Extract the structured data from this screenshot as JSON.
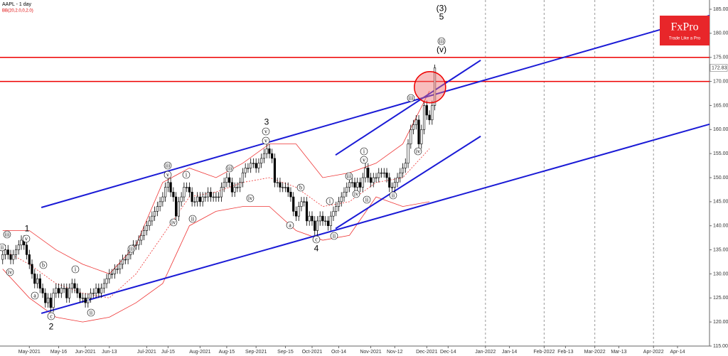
{
  "chart_data": {
    "type": "candlestick",
    "title": "AAPL - 1 day",
    "subtitle": "BB(20,2.0,0,2.0)",
    "open": [
      133,
      134,
      135,
      134,
      133,
      134,
      135,
      136,
      137,
      136,
      134,
      132,
      130,
      128,
      129,
      127,
      126,
      124,
      125,
      123,
      126,
      127,
      126,
      127,
      127,
      125,
      127,
      128,
      127,
      126,
      125,
      125,
      124,
      125,
      126,
      126,
      127,
      126,
      127,
      128,
      129,
      130,
      130,
      131,
      131,
      132,
      133,
      133,
      134,
      135,
      136,
      136,
      137,
      138,
      139,
      140,
      141,
      142,
      143,
      144,
      145,
      146,
      148,
      149,
      147,
      146,
      142,
      145,
      146,
      148,
      148,
      147,
      145,
      145,
      146,
      145,
      146,
      146,
      147,
      146,
      146,
      146,
      146,
      148,
      149,
      150,
      149,
      147,
      148,
      148,
      149,
      151,
      152,
      152,
      153,
      153,
      152,
      153,
      154,
      155,
      156,
      155,
      154,
      149,
      149,
      148,
      148,
      148,
      147,
      146,
      143,
      142,
      144,
      145,
      145,
      141,
      142,
      141,
      139,
      141,
      142,
      141,
      141,
      140,
      142,
      143,
      144,
      145,
      146,
      147,
      148,
      149,
      149,
      148,
      149,
      148,
      150,
      152,
      150,
      149,
      150,
      150,
      151,
      151,
      151,
      150,
      148,
      148,
      149,
      150,
      151,
      152,
      153,
      157,
      160,
      161,
      162,
      157,
      160,
      165,
      163,
      162,
      165
    ],
    "high": [
      135,
      136,
      136,
      135,
      135,
      136,
      137,
      138,
      138,
      137,
      135,
      133,
      131,
      130,
      130,
      128,
      127,
      126,
      126,
      127,
      128,
      128,
      128,
      128,
      128,
      128,
      129,
      129,
      128,
      127,
      126,
      126,
      126,
      127,
      127,
      128,
      128,
      128,
      129,
      130,
      131,
      131,
      132,
      132,
      133,
      134,
      134,
      135,
      136,
      137,
      137,
      138,
      139,
      140,
      141,
      142,
      143,
      144,
      145,
      146,
      147,
      149,
      150,
      150,
      148,
      147,
      146,
      147,
      149,
      149,
      149,
      148,
      146,
      147,
      147,
      147,
      147,
      148,
      148,
      147,
      147,
      147,
      149,
      150,
      151,
      151,
      150,
      149,
      149,
      150,
      152,
      153,
      153,
      154,
      154,
      154,
      154,
      155,
      156,
      157,
      157,
      156,
      155,
      150,
      150,
      149,
      149,
      149,
      148,
      147,
      144,
      145,
      146,
      146,
      146,
      143,
      143,
      142,
      142,
      143,
      143,
      142,
      142,
      143,
      144,
      145,
      146,
      147,
      148,
      149,
      150,
      150,
      150,
      150,
      150,
      151,
      153,
      153,
      151,
      151,
      151,
      152,
      152,
      152,
      152,
      151,
      149,
      150,
      151,
      152,
      153,
      154,
      158,
      161,
      162,
      163,
      163,
      161,
      166,
      166,
      164,
      166,
      173.5
    ],
    "low": [
      132,
      133,
      133,
      132,
      132,
      133,
      134,
      135,
      135,
      133,
      131,
      129,
      127,
      127,
      126,
      125,
      123,
      123,
      122,
      122,
      125,
      125,
      125,
      126,
      124,
      124,
      126,
      126,
      125,
      124,
      124,
      123,
      123,
      124,
      125,
      125,
      125,
      125,
      126,
      127,
      128,
      129,
      129,
      130,
      130,
      131,
      132,
      132,
      133,
      134,
      135,
      135,
      136,
      137,
      138,
      139,
      140,
      141,
      142,
      143,
      144,
      145,
      147,
      146,
      145,
      141,
      141,
      144,
      145,
      147,
      146,
      144,
      144,
      144,
      144,
      144,
      145,
      145,
      145,
      145,
      145,
      145,
      145,
      147,
      148,
      148,
      146,
      146,
      147,
      147,
      148,
      150,
      151,
      151,
      152,
      151,
      151,
      152,
      153,
      154,
      154,
      153,
      148,
      148,
      147,
      147,
      147,
      146,
      145,
      142,
      141,
      141,
      143,
      144,
      140,
      140,
      140,
      138,
      138,
      140,
      140,
      140,
      139,
      139,
      141,
      142,
      143,
      144,
      145,
      146,
      147,
      148,
      147,
      147,
      147,
      147,
      149,
      149,
      148,
      148,
      149,
      149,
      150,
      150,
      149,
      147,
      147,
      147,
      148,
      149,
      150,
      151,
      152,
      156,
      159,
      160,
      156,
      156,
      159,
      162,
      161,
      161,
      164
    ],
    "close": [
      134,
      135,
      134,
      133,
      134,
      135,
      136,
      137,
      136,
      134,
      132,
      130,
      128,
      129,
      127,
      126,
      124,
      125,
      123,
      126,
      127,
      126,
      127,
      127,
      125,
      127,
      128,
      127,
      126,
      125,
      125,
      124,
      125,
      126,
      126,
      127,
      126,
      127,
      128,
      129,
      130,
      130,
      131,
      131,
      132,
      133,
      133,
      134,
      135,
      136,
      136,
      137,
      138,
      139,
      140,
      141,
      142,
      143,
      144,
      145,
      146,
      148,
      149,
      147,
      146,
      142,
      145,
      146,
      148,
      148,
      147,
      145,
      145,
      146,
      145,
      146,
      146,
      147,
      146,
      146,
      146,
      146,
      148,
      149,
      150,
      149,
      147,
      148,
      148,
      149,
      151,
      152,
      152,
      153,
      153,
      152,
      153,
      154,
      155,
      156,
      155,
      154,
      149,
      149,
      148,
      148,
      148,
      147,
      146,
      143,
      142,
      144,
      145,
      145,
      141,
      142,
      141,
      139,
      141,
      142,
      141,
      141,
      140,
      142,
      143,
      144,
      145,
      146,
      147,
      148,
      149,
      149,
      148,
      149,
      148,
      150,
      152,
      150,
      149,
      150,
      150,
      151,
      151,
      151,
      150,
      148,
      148,
      149,
      150,
      151,
      152,
      153,
      157,
      160,
      161,
      162,
      157,
      160,
      165,
      163,
      162,
      165,
      172.83
    ],
    "bollinger": {
      "x": [
        0,
        10,
        20,
        30,
        40,
        50,
        60,
        70,
        80,
        90,
        100,
        110,
        120,
        130,
        140,
        150,
        160
      ],
      "upper": [
        139,
        139,
        135,
        132,
        130,
        136,
        149,
        152,
        150,
        153,
        157,
        157,
        150,
        151,
        153,
        157,
        168
      ],
      "middle": [
        135,
        132,
        128,
        126,
        125,
        130,
        138,
        146,
        147,
        149,
        150,
        148,
        144,
        145,
        149,
        150,
        156
      ],
      "lower": [
        131,
        125,
        121,
        120,
        121,
        124,
        128,
        140,
        143,
        144,
        144,
        139,
        137,
        138,
        146,
        144,
        145
      ]
    },
    "trendlines": [
      {
        "x": [
          14.5,
          265
        ],
        "y": [
          143.8,
          183.7
        ]
      },
      {
        "x": [
          14.5,
          265
        ],
        "y": [
          121.8,
          161.1
        ]
      },
      {
        "x": [
          124.8,
          179.2
        ],
        "y": [
          154.7,
          174.4
        ]
      },
      {
        "x": [
          124.8,
          179.2
        ],
        "y": [
          139.4,
          158.6
        ]
      }
    ],
    "levels": [
      175,
      170
    ],
    "highlight": {
      "x": 160.2,
      "y": 168.8
    },
    "last_price": 172.83,
    "wave_labels": [
      "iii",
      "v",
      "1",
      "ii",
      "iv",
      "a",
      "b",
      "c",
      "2",
      "i",
      "ii",
      "iii",
      "v",
      "iii",
      "iv",
      "i",
      "ii",
      "iii",
      "iv",
      "3",
      "v",
      "v",
      "b",
      "a",
      "c",
      "4",
      "i",
      "ii",
      "iii",
      "iv",
      "i",
      "v",
      "ii",
      "iii",
      "iv",
      "ii",
      "iii",
      "(v)",
      "(3)",
      "5"
    ],
    "xlim": [
      -1,
      265
    ],
    "ylim": [
      115,
      185
    ],
    "xticks": [
      {
        "value": 10,
        "label": "May-2021"
      },
      {
        "value": 21,
        "label": "May-16"
      },
      {
        "value": 31,
        "label": "Jun-2021"
      },
      {
        "value": 40,
        "label": "Jun-13"
      },
      {
        "value": 54,
        "label": "Jul-2021"
      },
      {
        "value": 62,
        "label": "Jul-15"
      },
      {
        "value": 74,
        "label": "Aug-2021"
      },
      {
        "value": 84,
        "label": "Aug-15"
      },
      {
        "value": 95,
        "label": "Sep-2021"
      },
      {
        "value": 106,
        "label": "Sep-15"
      },
      {
        "value": 116,
        "label": "Oct-2021"
      },
      {
        "value": 126,
        "label": "Oct-14"
      },
      {
        "value": 138,
        "label": "Nov-2021"
      },
      {
        "value": 147,
        "label": "Nov-12"
      },
      {
        "value": 159,
        "label": "Dec-2021"
      },
      {
        "value": 167,
        "label": "Dec-14"
      },
      {
        "value": 181,
        "label": "Jan-2022"
      },
      {
        "value": 190,
        "label": "Jan-14"
      },
      {
        "value": 203,
        "label": "Feb-2022"
      },
      {
        "value": 211,
        "label": "Feb-13"
      },
      {
        "value": 222,
        "label": "Mar-2022"
      },
      {
        "value": 231,
        "label": "Mar-13"
      },
      {
        "value": 244,
        "label": "Apr-2022"
      },
      {
        "value": 253,
        "label": "Apr-14"
      }
    ],
    "yticks": [
      {
        "value": 115,
        "label": "115.00"
      },
      {
        "value": 120,
        "label": "120.00"
      },
      {
        "value": 125,
        "label": "125.00"
      },
      {
        "value": 130,
        "label": "130.00"
      },
      {
        "value": 135,
        "label": "135.00"
      },
      {
        "value": 140,
        "label": "140.00"
      },
      {
        "value": 145,
        "label": "145.00"
      },
      {
        "value": 150,
        "label": "150.00"
      },
      {
        "value": 155,
        "label": "155.00"
      },
      {
        "value": 160,
        "label": "160.00"
      },
      {
        "value": 165,
        "label": "165.00"
      },
      {
        "value": 170,
        "label": "170.00"
      },
      {
        "value": 175,
        "label": "175.00"
      },
      {
        "value": 180,
        "label": "180.00"
      },
      {
        "value": 185,
        "label": "185.00"
      }
    ]
  },
  "logo": {
    "name": "FxPro",
    "tagline": "Trade Like a Pro"
  }
}
